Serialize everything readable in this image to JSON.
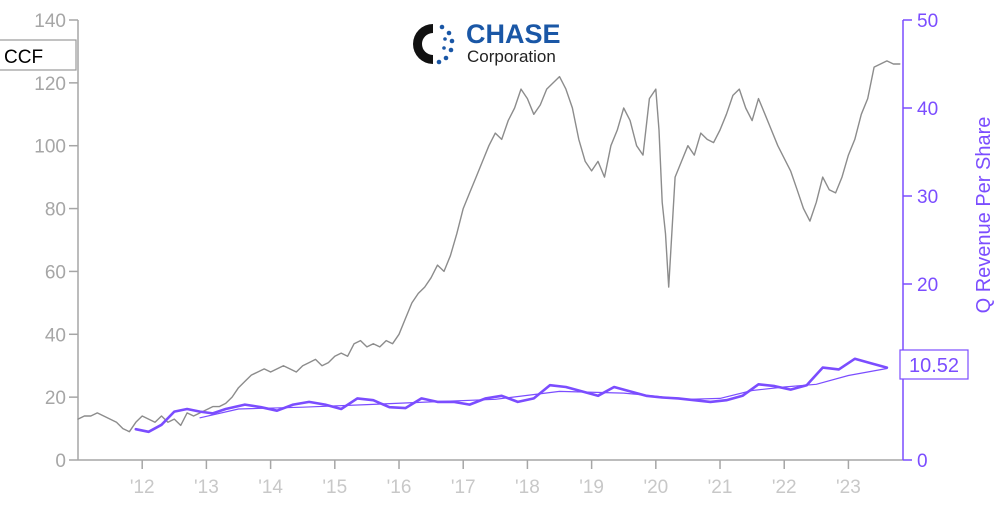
{
  "chart_data": {
    "type": "line",
    "ticker": "CCF",
    "logo": {
      "name": "CHASE",
      "subtitle": "Corporation"
    },
    "xlim": [
      2011.0,
      2023.85
    ],
    "x_ticks": [
      {
        "label": "'12",
        "x": 2012.0
      },
      {
        "label": "'13",
        "x": 2013.0
      },
      {
        "label": "'14",
        "x": 2014.0
      },
      {
        "label": "'15",
        "x": 2015.0
      },
      {
        "label": "'16",
        "x": 2016.0
      },
      {
        "label": "'17",
        "x": 2017.0
      },
      {
        "label": "'18",
        "x": 2018.0
      },
      {
        "label": "'19",
        "x": 2019.0
      },
      {
        "label": "'20",
        "x": 2020.0
      },
      {
        "label": "'21",
        "x": 2021.0
      },
      {
        "label": "'22",
        "x": 2022.0
      },
      {
        "label": "'23",
        "x": 2023.0
      }
    ],
    "y_left": {
      "ylim": [
        0,
        140
      ],
      "ticks": [
        "0",
        "20",
        "40",
        "60",
        "80",
        "100",
        "120",
        "140"
      ]
    },
    "y_right": {
      "label": "Q Revenue Per Share",
      "ylim": [
        0,
        50
      ],
      "ticks": [
        "0",
        "10",
        "20",
        "30",
        "40",
        "50"
      ]
    },
    "last_value_label": "10.52",
    "series": [
      {
        "axis": "left",
        "color": "#8c8c8c",
        "x": [
          2011.0,
          2011.1,
          2011.2,
          2011.3,
          2011.4,
          2011.5,
          2011.6,
          2011.7,
          2011.8,
          2011.9,
          2012.0,
          2012.1,
          2012.2,
          2012.3,
          2012.4,
          2012.5,
          2012.6,
          2012.7,
          2012.8,
          2012.9,
          2013.0,
          2013.1,
          2013.2,
          2013.3,
          2013.4,
          2013.5,
          2013.6,
          2013.7,
          2013.8,
          2013.9,
          2014.0,
          2014.1,
          2014.2,
          2014.3,
          2014.4,
          2014.5,
          2014.6,
          2014.7,
          2014.8,
          2014.9,
          2015.0,
          2015.1,
          2015.2,
          2015.3,
          2015.4,
          2015.5,
          2015.6,
          2015.7,
          2015.8,
          2015.9,
          2016.0,
          2016.1,
          2016.2,
          2016.3,
          2016.4,
          2016.5,
          2016.6,
          2016.7,
          2016.8,
          2016.9,
          2017.0,
          2017.1,
          2017.2,
          2017.3,
          2017.4,
          2017.5,
          2017.6,
          2017.7,
          2017.8,
          2017.9,
          2018.0,
          2018.1,
          2018.2,
          2018.3,
          2018.4,
          2018.5,
          2018.6,
          2018.7,
          2018.8,
          2018.9,
          2019.0,
          2019.1,
          2019.2,
          2019.3,
          2019.4,
          2019.5,
          2019.6,
          2019.7,
          2019.8,
          2019.9,
          2020.0,
          2020.05,
          2020.1,
          2020.15,
          2020.2,
          2020.3,
          2020.4,
          2020.5,
          2020.6,
          2020.7,
          2020.8,
          2020.9,
          2021.0,
          2021.1,
          2021.2,
          2021.3,
          2021.4,
          2021.5,
          2021.6,
          2021.7,
          2021.8,
          2021.9,
          2022.0,
          2022.1,
          2022.2,
          2022.3,
          2022.4,
          2022.5,
          2022.6,
          2022.7,
          2022.8,
          2022.9,
          2023.0,
          2023.1,
          2023.2,
          2023.3,
          2023.4,
          2023.5,
          2023.6,
          2023.7,
          2023.8
        ],
        "y": [
          13,
          14,
          14,
          15,
          14,
          13,
          12,
          10,
          9,
          12,
          14,
          13,
          12,
          14,
          12,
          13,
          11,
          15,
          14,
          15,
          16,
          17,
          17,
          18,
          20,
          23,
          25,
          27,
          28,
          29,
          28,
          29,
          30,
          29,
          28,
          30,
          31,
          32,
          30,
          31,
          33,
          34,
          33,
          37,
          38,
          36,
          37,
          36,
          38,
          37,
          40,
          45,
          50,
          53,
          55,
          58,
          62,
          60,
          65,
          72,
          80,
          85,
          90,
          95,
          100,
          104,
          102,
          108,
          112,
          118,
          115,
          110,
          113,
          118,
          120,
          122,
          118,
          112,
          102,
          95,
          92,
          95,
          90,
          100,
          105,
          112,
          108,
          100,
          97,
          115,
          118,
          105,
          82,
          72,
          55,
          90,
          95,
          100,
          97,
          104,
          102,
          101,
          105,
          110,
          116,
          118,
          112,
          108,
          115,
          110,
          105,
          100,
          96,
          92,
          86,
          80,
          76,
          82,
          90,
          86,
          85,
          90,
          97,
          102,
          110,
          115,
          125,
          126,
          127,
          126,
          126
        ]
      },
      {
        "axis": "right",
        "color": "#7b4dff",
        "x": [
          2011.9,
          2012.1,
          2012.3,
          2012.5,
          2012.7,
          2012.9,
          2013.1,
          2013.3,
          2013.6,
          2013.85,
          2014.1,
          2014.35,
          2014.6,
          2014.85,
          2015.1,
          2015.35,
          2015.6,
          2015.85,
          2016.1,
          2016.35,
          2016.6,
          2016.85,
          2017.1,
          2017.35,
          2017.6,
          2017.85,
          2018.1,
          2018.35,
          2018.6,
          2018.85,
          2019.1,
          2019.35,
          2019.6,
          2019.85,
          2020.1,
          2020.35,
          2020.6,
          2020.85,
          2021.1,
          2021.35,
          2021.6,
          2021.85,
          2022.1,
          2022.35,
          2022.6,
          2022.85,
          2023.1,
          2023.35,
          2023.6
        ],
        "y": [
          3.5,
          3.2,
          4.0,
          5.5,
          5.8,
          5.5,
          5.3,
          5.8,
          6.3,
          6.0,
          5.6,
          6.3,
          6.6,
          6.3,
          5.8,
          7.0,
          6.8,
          6.0,
          5.9,
          7.0,
          6.6,
          6.6,
          6.3,
          7.0,
          7.3,
          6.6,
          7.0,
          8.5,
          8.3,
          7.8,
          7.3,
          8.3,
          7.8,
          7.3,
          7.1,
          7.0,
          6.8,
          6.6,
          6.8,
          7.3,
          8.6,
          8.4,
          8.0,
          8.5,
          10.5,
          10.3,
          11.5,
          11.0,
          10.5
        ]
      },
      {
        "axis": "right",
        "color": "#7b4dff",
        "x": [
          2012.9,
          2013.5,
          2014.5,
          2015.5,
          2016.5,
          2017.5,
          2018.5,
          2019.5,
          2020.5,
          2021.0,
          2021.5,
          2022.0,
          2022.5,
          2023.0,
          2023.6
        ],
        "y": [
          4.8,
          5.8,
          6.0,
          6.3,
          6.6,
          6.9,
          7.8,
          7.6,
          6.9,
          7.0,
          7.9,
          8.3,
          8.6,
          9.6,
          10.4
        ]
      }
    ]
  }
}
